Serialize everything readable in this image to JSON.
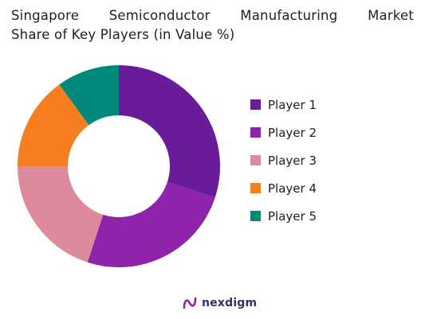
{
  "chart_data": {
    "type": "donut",
    "title_line1": "Singapore Semiconductor Manufacturing Market",
    "title_line2": "Share of Key Players (in Value %)",
    "series": [
      {
        "name": "Player 1",
        "value": 30,
        "color": "#6a1b9a"
      },
      {
        "name": "Player 2",
        "value": 25,
        "color": "#8e24aa"
      },
      {
        "name": "Player 3",
        "value": 20,
        "color": "#de8a9d"
      },
      {
        "name": "Player 4",
        "value": 15,
        "color": "#f57f20"
      },
      {
        "name": "Player 5",
        "value": 10,
        "color": "#00897b"
      }
    ],
    "legend_position": "right"
  },
  "brand": {
    "name": "nexdigm",
    "icon": "nexdigm-logo-icon"
  }
}
